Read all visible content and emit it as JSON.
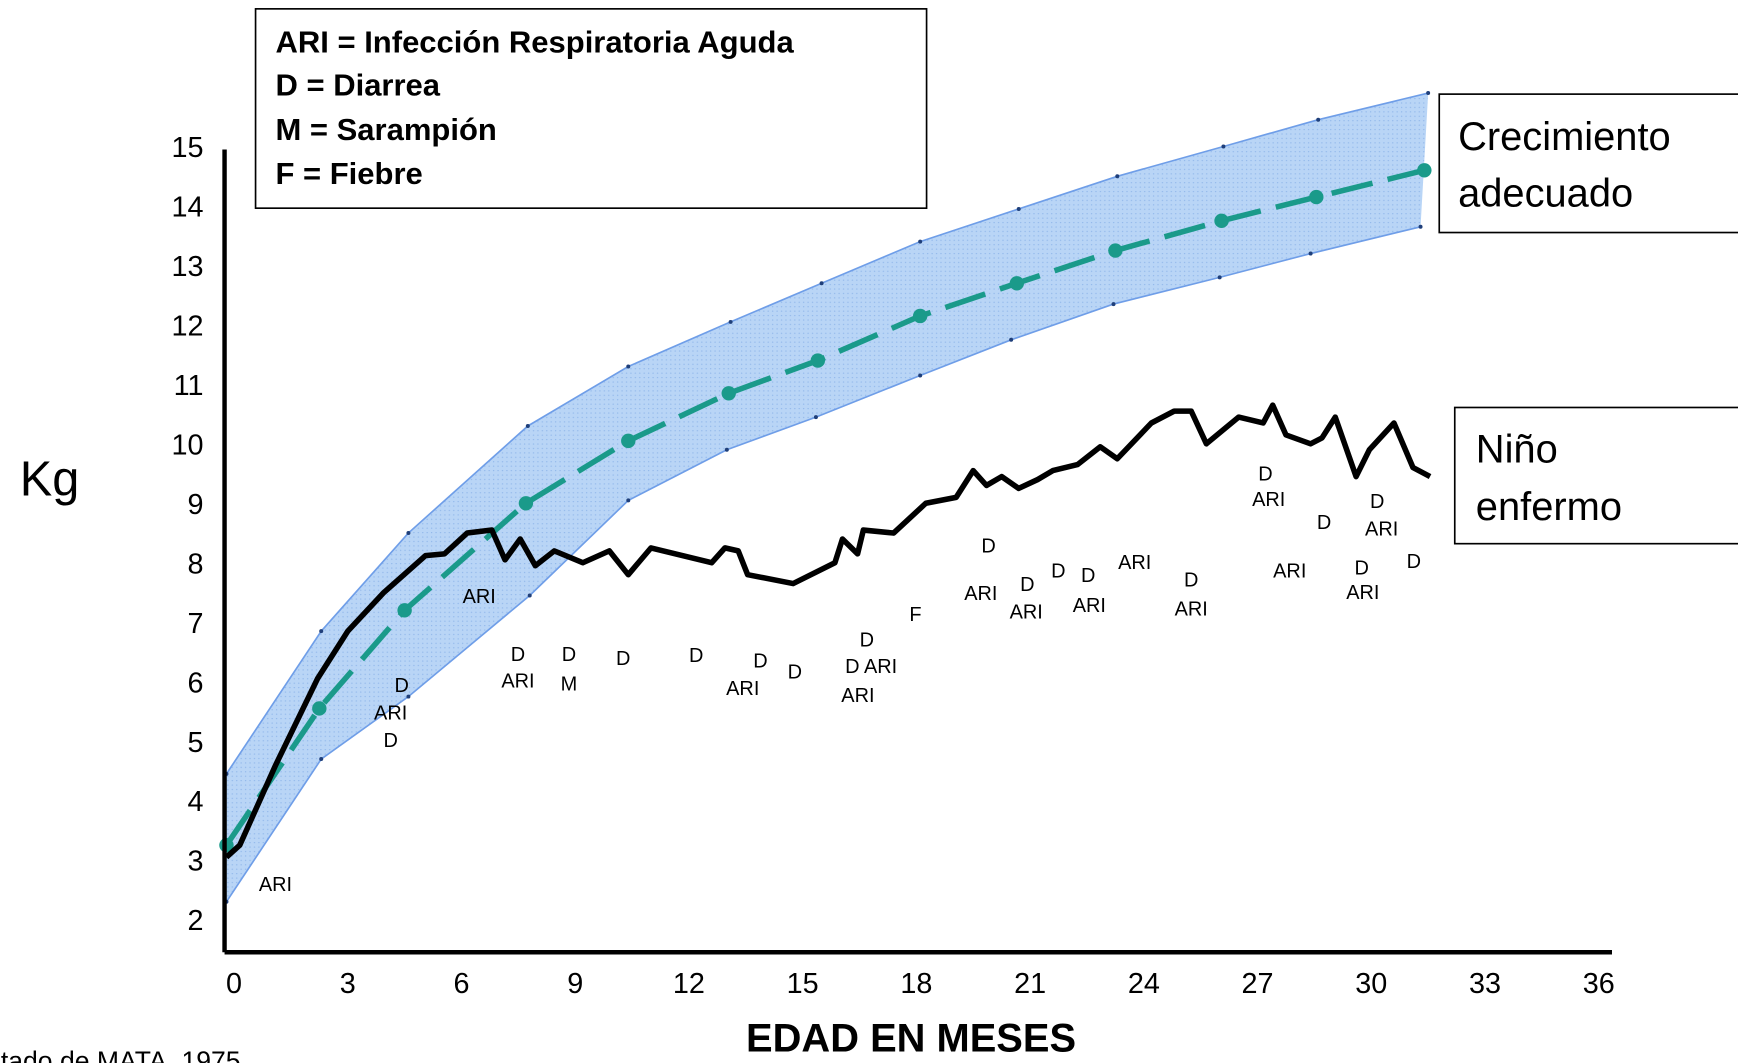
{
  "chart_data": {
    "type": "line",
    "xlabel": "EDAD EN MESES",
    "ylabel": "Kg",
    "source": "tado de MATA, 1975",
    "legend_box": [
      "ARI = Infección Respiratoria Aguda",
      "D = Diarrea",
      "M = Sarampión",
      "F = Fiebre"
    ],
    "growth_label": [
      "Crecimiento",
      "adecuado"
    ],
    "child_label": [
      "Niño",
      "enfermo"
    ],
    "xlim": [
      -0.25,
      36.35
    ],
    "ylim": [
      1.5,
      15
    ],
    "xticks": [
      0,
      3,
      6,
      9,
      12,
      15,
      18,
      21,
      24,
      27,
      30,
      33,
      36
    ],
    "yticks": [
      2,
      3,
      4,
      5,
      6,
      7,
      8,
      9,
      10,
      11,
      12,
      13,
      14,
      15
    ],
    "band_color": "#b9d5f6",
    "band_edge_color": "#6f9ee8",
    "upper": {
      "x": [
        -0.2,
        2.3,
        4.6,
        7.75,
        10.4,
        13.1,
        15.5,
        18.1,
        20.7,
        23.3,
        26.1,
        28.6,
        31.5
      ],
      "values": [
        4.5,
        6.9,
        8.55,
        10.35,
        11.35,
        12.1,
        12.75,
        13.45,
        14.0,
        14.55,
        15.05,
        15.5,
        15.95
      ]
    },
    "lower": {
      "x": [
        -0.2,
        2.3,
        4.6,
        7.8,
        10.4,
        13.0,
        15.35,
        18.1,
        20.5,
        23.2,
        26.0,
        28.4,
        31.3
      ],
      "values": [
        2.35,
        4.75,
        5.8,
        7.5,
        9.1,
        9.95,
        10.5,
        11.2,
        11.8,
        12.4,
        12.85,
        13.25,
        13.7
      ]
    },
    "median": {
      "color": "#1a9a8a",
      "x": [
        -0.2,
        2.25,
        4.5,
        7.7,
        10.4,
        13.05,
        15.4,
        18.1,
        20.65,
        23.25,
        26.05,
        28.55,
        31.4
      ],
      "values": [
        3.3,
        5.6,
        7.25,
        9.05,
        10.1,
        10.9,
        11.45,
        12.2,
        12.75,
        13.3,
        13.8,
        14.2,
        14.65
      ]
    },
    "child": {
      "color": "#000000",
      "x": [
        -0.2,
        0.15,
        1.1,
        2.2,
        3.0,
        3.95,
        5.05,
        5.55,
        6.15,
        6.8,
        7.15,
        7.55,
        7.95,
        8.45,
        9.2,
        9.9,
        10.4,
        11.0,
        12.6,
        12.95,
        13.3,
        13.55,
        14.75,
        15.85,
        16.05,
        16.45,
        16.6,
        17.4,
        18.25,
        19.05,
        19.5,
        19.85,
        20.25,
        20.7,
        21.2,
        21.6,
        22.25,
        22.85,
        23.3,
        24.2,
        24.8,
        25.25,
        25.65,
        26.5,
        27.15,
        27.4,
        27.75,
        28.4,
        28.7,
        29.05,
        29.6,
        29.95,
        30.6,
        31.1,
        31.55
      ],
      "values": [
        3.1,
        3.3,
        4.65,
        6.1,
        6.9,
        7.55,
        8.17,
        8.2,
        8.55,
        8.6,
        8.1,
        8.45,
        8.0,
        8.25,
        8.05,
        8.25,
        7.85,
        8.3,
        8.05,
        8.3,
        8.25,
        7.85,
        7.7,
        8.05,
        8.45,
        8.2,
        8.6,
        8.55,
        9.05,
        9.15,
        9.6,
        9.35,
        9.5,
        9.3,
        9.45,
        9.6,
        9.7,
        10.0,
        9.8,
        10.4,
        10.6,
        10.6,
        10.05,
        10.5,
        10.4,
        10.7,
        10.2,
        10.05,
        10.15,
        10.5,
        9.5,
        9.95,
        10.4,
        9.65,
        9.5
      ]
    },
    "annotations": [
      "ARI",
      "D",
      "ARI",
      "D",
      "ARI",
      "D",
      "ARI",
      "D",
      "M",
      "D",
      "D",
      "D",
      "ARI",
      "D",
      "D",
      "D ARI",
      "ARI",
      "F",
      "D",
      "ARI",
      "D",
      "ARI",
      "D",
      "D",
      "ARI",
      "ARI",
      "D",
      "ARI",
      "D",
      "ARI",
      "D",
      "D",
      "ARI",
      "ARI",
      "D",
      "ARI",
      "D"
    ]
  }
}
